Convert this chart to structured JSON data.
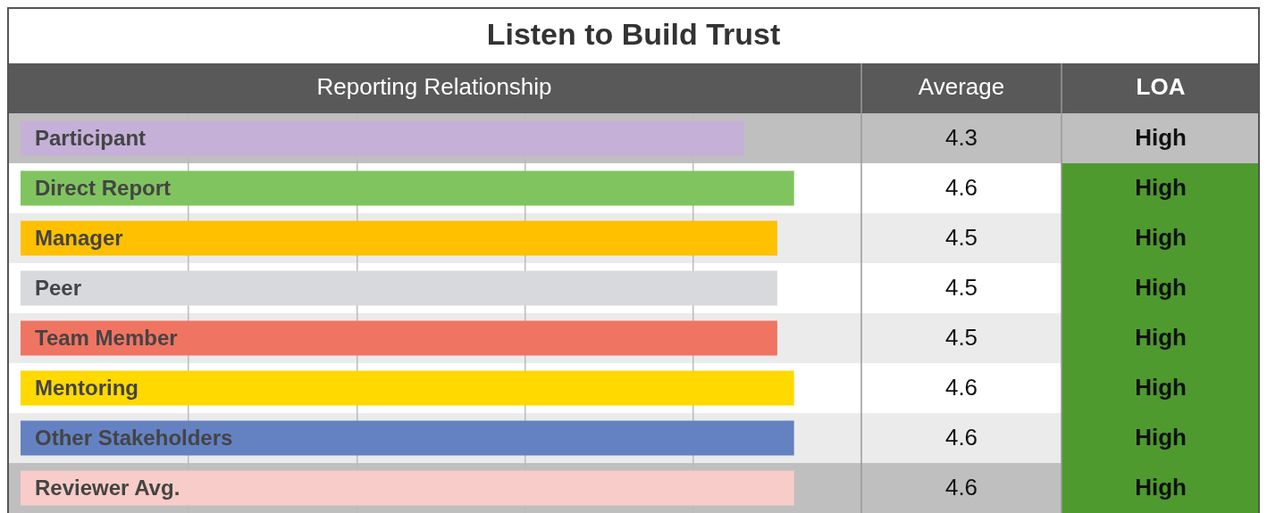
{
  "chart_data": {
    "type": "bar",
    "orientation": "horizontal",
    "title": "Listen to Build Trust",
    "ylabel": "Reporting Relationship",
    "categories": [
      "Participant",
      "Direct Report",
      "Manager",
      "Peer",
      "Team Member",
      "Mentoring",
      "Other Stakeholders",
      "Reviewer Avg."
    ],
    "values": [
      4.3,
      4.6,
      4.5,
      4.5,
      4.5,
      4.6,
      4.6,
      4.6
    ],
    "colors": [
      "#c5b0d8",
      "#80c45f",
      "#ffc000",
      "#d8d9dc",
      "#f07462",
      "#ffd900",
      "#6482c2",
      "#f8ccc8"
    ],
    "xlim": [
      0,
      5
    ],
    "xticks": [
      {
        "value": 1,
        "label": null
      },
      {
        "value": 2,
        "label": null
      },
      {
        "value": 3,
        "label": null
      },
      {
        "value": 4,
        "label": null
      }
    ],
    "grid": "x",
    "tick_labels": "y",
    "data_labels": true,
    "annotations": [
      "Average",
      "LOA",
      "High",
      "High",
      "High",
      "High",
      "High",
      "High",
      "High",
      "High"
    ]
  }
}
